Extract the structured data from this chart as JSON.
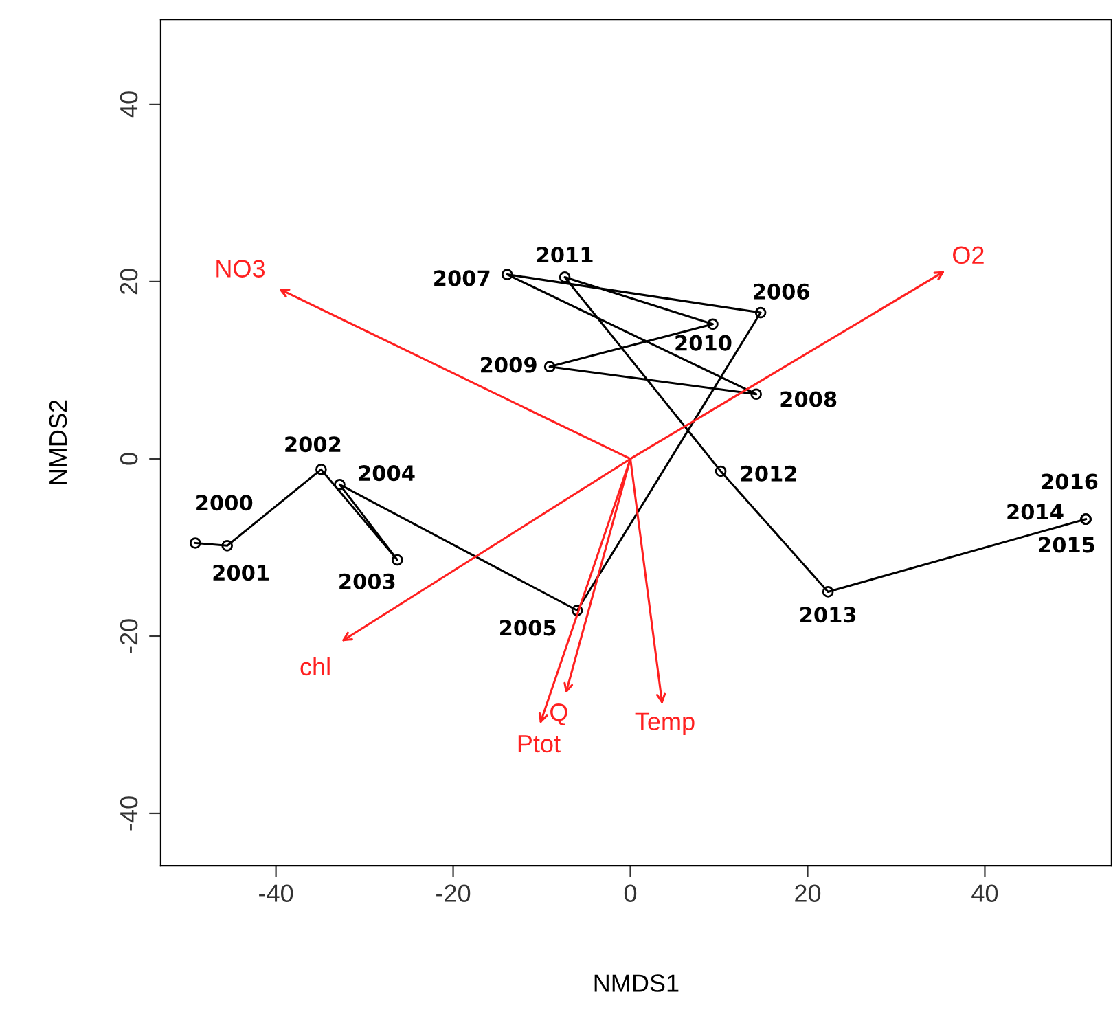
{
  "chart_data": {
    "type": "line",
    "xlabel": "NMDS1",
    "ylabel": "NMDS2",
    "xlim": [
      -53,
      54.3
    ],
    "ylim": [
      -45.9,
      49.6
    ],
    "xticks": [
      -40,
      -20,
      0,
      20,
      40
    ],
    "yticks": [
      -40,
      -20,
      0,
      20,
      40
    ],
    "grid": false,
    "legend": false,
    "series": [
      {
        "color": "#000000",
        "marker": "circle",
        "x": [
          -49.1,
          -45.5,
          -34.9,
          -26.3,
          -32.8,
          -6.0,
          14.7,
          -13.9,
          14.2,
          -9.1,
          9.3,
          -7.4,
          10.2,
          22.3,
          51.4,
          51.4,
          51.4
        ],
        "values": [
          -9.5,
          -9.8,
          -1.2,
          -11.4,
          -2.9,
          -17.1,
          16.5,
          20.8,
          7.3,
          10.4,
          15.2,
          20.5,
          -1.4,
          -15.0,
          -6.8,
          -6.8,
          -6.8
        ]
      },
      {
        "color": "#ff2020",
        "marker": "none",
        "x": [
          0,
          -39.7
        ],
        "values": [
          0,
          19.2
        ]
      },
      {
        "color": "#ff2020",
        "marker": "none",
        "x": [
          0,
          35.5
        ],
        "values": [
          0,
          21.2
        ]
      },
      {
        "color": "#ff2020",
        "marker": "none",
        "x": [
          0,
          -32.6
        ],
        "values": [
          0,
          -20.6
        ]
      },
      {
        "color": "#ff2020",
        "marker": "none",
        "x": [
          0,
          -10.2
        ],
        "values": [
          0,
          -29.9
        ]
      },
      {
        "color": "#ff2020",
        "marker": "none",
        "x": [
          0,
          -7.3
        ],
        "values": [
          0,
          -26.5
        ]
      },
      {
        "color": "#ff2020",
        "marker": "none",
        "x": [
          0,
          3.6
        ],
        "values": [
          0,
          -27.7
        ]
      }
    ],
    "annotations": [
      "NO3",
      "O2",
      "chl",
      "Ptot",
      "Q",
      "Temp",
      {
        "text": "2000",
        "x": -49.1,
        "y": -9.5
      },
      {
        "text": "2001",
        "x": -45.5,
        "y": -9.8
      },
      {
        "text": "2002",
        "x": -34.9,
        "y": -1.2
      },
      {
        "text": "2003",
        "x": -26.3,
        "y": -11.4
      },
      {
        "text": "2004",
        "x": -32.8,
        "y": -2.9
      },
      {
        "text": "2005",
        "x": -6.0,
        "y": -17.1
      },
      {
        "text": "2006",
        "x": 14.7,
        "y": 16.5
      },
      {
        "text": "2007",
        "x": -13.9,
        "y": 20.8
      },
      {
        "text": "2008",
        "x": 14.2,
        "y": 7.3
      },
      {
        "text": "2009",
        "x": -9.1,
        "y": 10.4
      },
      {
        "text": "2010",
        "x": 9.3,
        "y": 15.2
      },
      {
        "text": "2011",
        "x": -7.4,
        "y": 20.5
      },
      {
        "text": "2012",
        "x": 10.2,
        "y": -1.4
      },
      {
        "text": "2013",
        "x": 22.3,
        "y": -15.0
      },
      {
        "text": "2014",
        "x": 51.4,
        "y": -6.8
      },
      {
        "text": "2015",
        "x": 51.4,
        "y": -6.8
      },
      {
        "text": "2016",
        "x": 51.4,
        "y": -6.8
      }
    ]
  }
}
